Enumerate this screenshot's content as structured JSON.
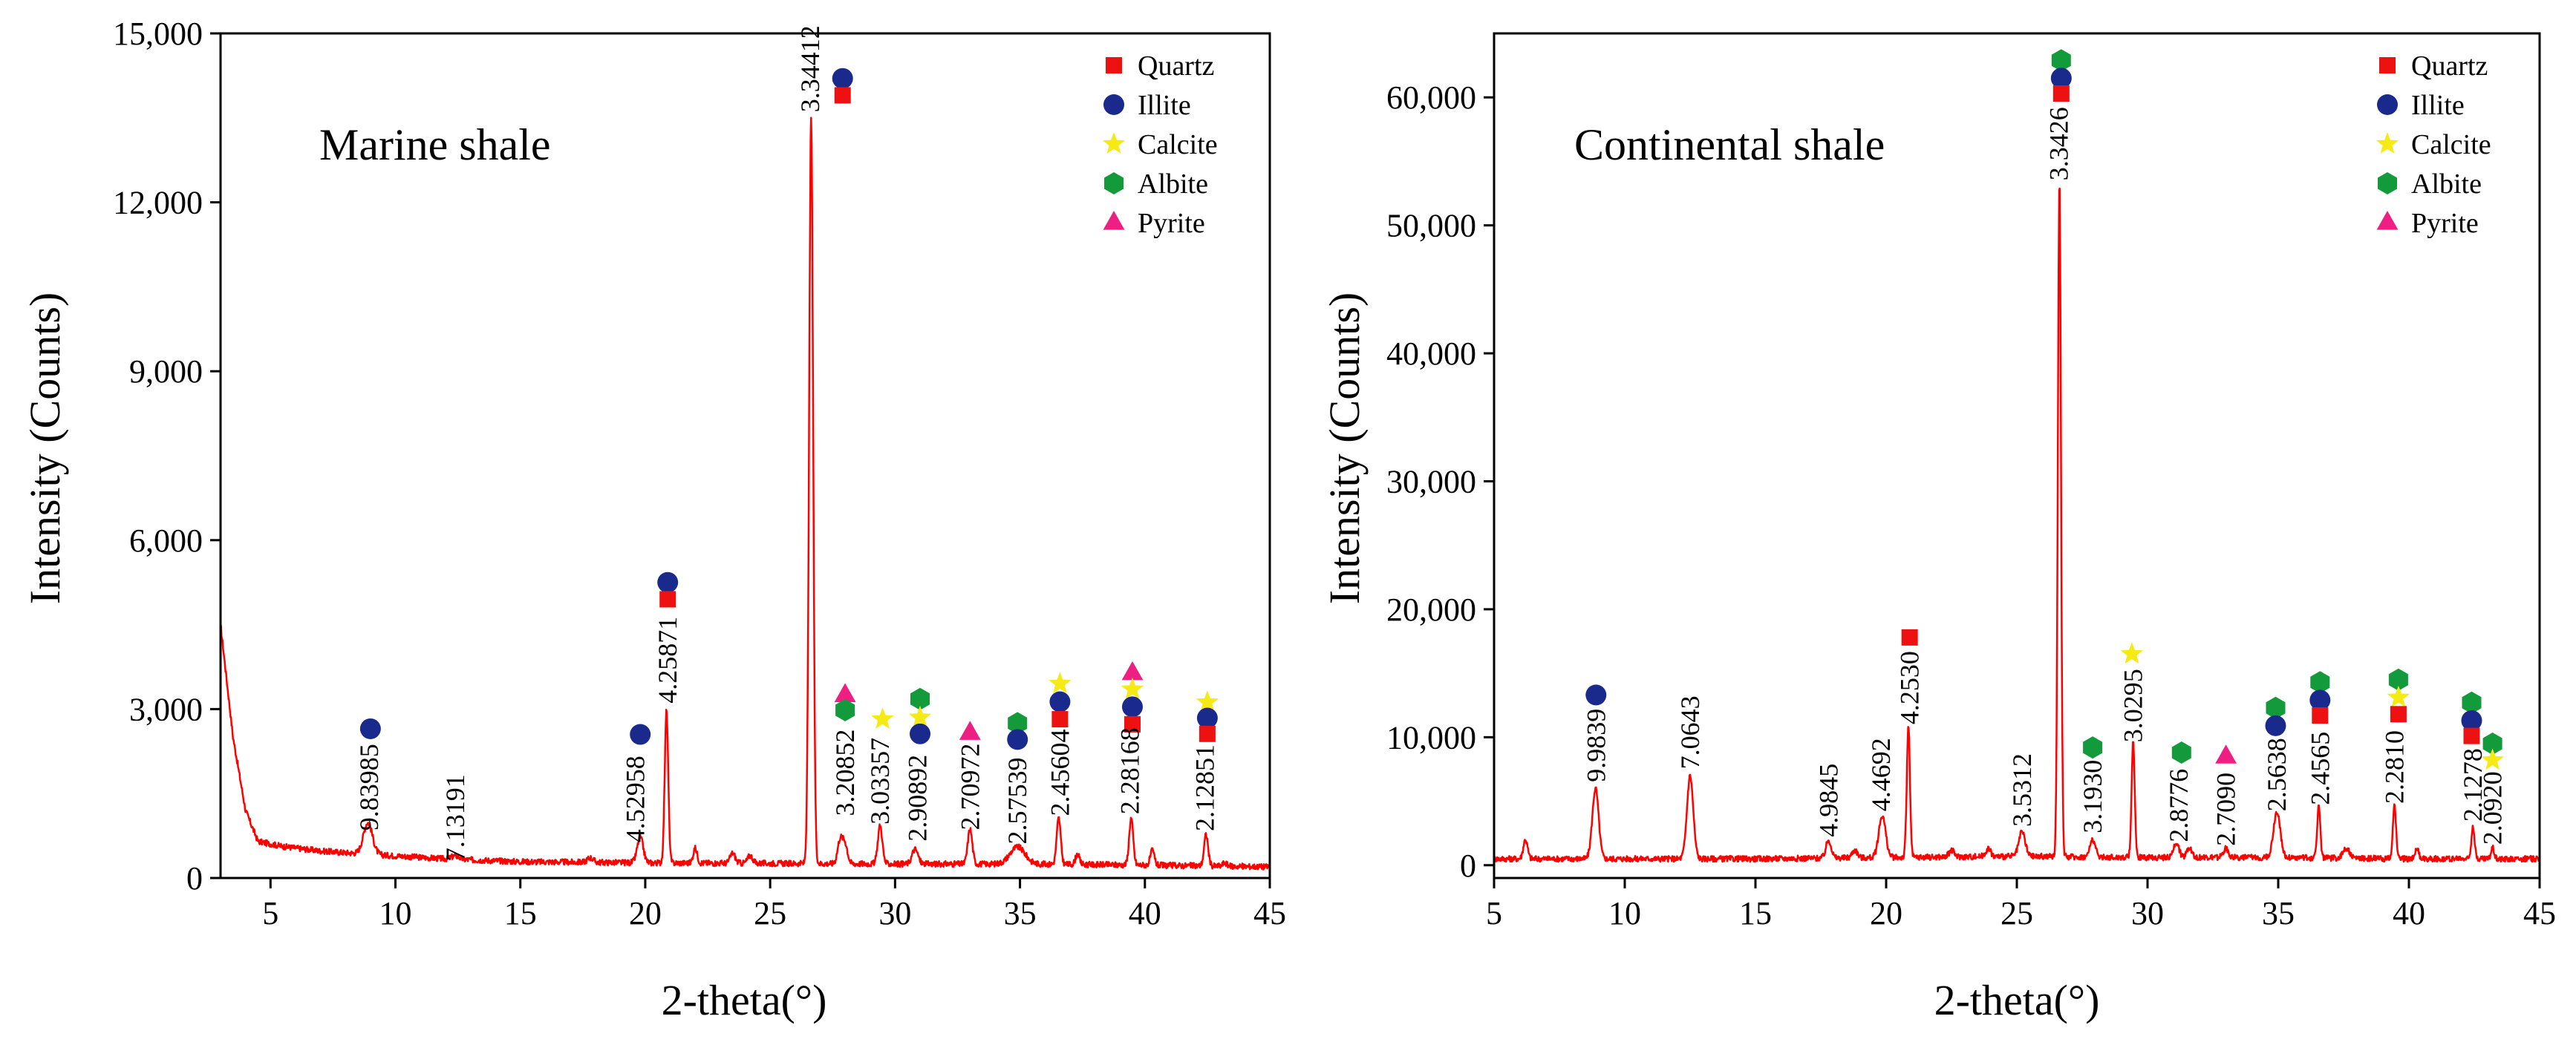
{
  "colors": {
    "trace": "#ff0000",
    "quartz": "#ee1111",
    "illite": "#1a2a8c",
    "calcite": "#f5ea14",
    "albite": "#139a3a",
    "pyrite": "#ee1e82"
  },
  "chart_data": [
    {
      "type": "line",
      "title": "Marine shale",
      "xlabel": "2-theta(°)",
      "ylabel": "Intensity (Counts)",
      "xlim": [
        3,
        45
      ],
      "ylim": [
        0,
        15000
      ],
      "xticks": [
        5,
        10,
        15,
        20,
        25,
        30,
        35,
        40,
        45
      ],
      "yticks": [
        0,
        3000,
        6000,
        9000,
        12000,
        15000
      ],
      "ytick_labels": [
        "0",
        "3,000",
        "6,000",
        "9,000",
        "12,000",
        "15,000"
      ],
      "grid": false,
      "legend_position": "top-right",
      "legend": [
        {
          "name": "Quartz",
          "marker": "square",
          "color": "#ee1111"
        },
        {
          "name": "Illite",
          "marker": "circle",
          "color": "#1a2a8c"
        },
        {
          "name": "Calcite",
          "marker": "star",
          "color": "#f5ea14"
        },
        {
          "name": "Albite",
          "marker": "hexagon",
          "color": "#139a3a"
        },
        {
          "name": "Pyrite",
          "marker": "triangle",
          "color": "#ee1e82"
        }
      ],
      "baseline": [
        [
          3,
          4500
        ],
        [
          3.5,
          2500
        ],
        [
          4,
          1200
        ],
        [
          4.5,
          650
        ],
        [
          5.5,
          560
        ],
        [
          7,
          480
        ],
        [
          9,
          420
        ],
        [
          12,
          340
        ],
        [
          15,
          290
        ],
        [
          20,
          270
        ],
        [
          25,
          260
        ],
        [
          30,
          250
        ],
        [
          35,
          250
        ],
        [
          40,
          230
        ],
        [
          45,
          200
        ]
      ],
      "peaks": [
        {
          "x": 8.9,
          "y": 560,
          "w": 0.18
        },
        {
          "x": 12.4,
          "y": 60,
          "w": 0.15
        },
        {
          "x": 17.8,
          "y": 80,
          "w": 0.12
        },
        {
          "x": 19.8,
          "y": 450,
          "w": 0.12
        },
        {
          "x": 20.85,
          "y": 2700,
          "w": 0.07
        },
        {
          "x": 22.0,
          "y": 260,
          "w": 0.08
        },
        {
          "x": 23.5,
          "y": 180,
          "w": 0.1
        },
        {
          "x": 24.2,
          "y": 140,
          "w": 0.1
        },
        {
          "x": 26.64,
          "y": 13200,
          "w": 0.08
        },
        {
          "x": 27.8,
          "y": 420,
          "w": 0.1
        },
        {
          "x": 28.0,
          "y": 340,
          "w": 0.1
        },
        {
          "x": 29.4,
          "y": 680,
          "w": 0.09
        },
        {
          "x": 30.8,
          "y": 260,
          "w": 0.12
        },
        {
          "x": 33.0,
          "y": 620,
          "w": 0.09
        },
        {
          "x": 34.9,
          "y": 300,
          "w": 0.3
        },
        {
          "x": 36.55,
          "y": 820,
          "w": 0.08
        },
        {
          "x": 37.3,
          "y": 180,
          "w": 0.08
        },
        {
          "x": 39.45,
          "y": 830,
          "w": 0.08
        },
        {
          "x": 40.3,
          "y": 260,
          "w": 0.08
        },
        {
          "x": 42.45,
          "y": 560,
          "w": 0.08
        },
        {
          "x": 43.2,
          "y": 60,
          "w": 0.08
        }
      ],
      "peak_labels": [
        {
          "x": 8.95,
          "y": 840,
          "text": "9.83985"
        },
        {
          "x": 12.4,
          "y": 300,
          "text": "7.13191"
        },
        {
          "x": 19.6,
          "y": 630,
          "text": "4.52958"
        },
        {
          "x": 20.9,
          "y": 3100,
          "text": "4.25871"
        },
        {
          "x": 26.6,
          "y": 13600,
          "text": "3.34412"
        },
        {
          "x": 28.0,
          "y": 1100,
          "text": "3.20852"
        },
        {
          "x": 29.4,
          "y": 950,
          "text": "3.03357"
        },
        {
          "x": 30.9,
          "y": 650,
          "text": "2.90892"
        },
        {
          "x": 33.0,
          "y": 850,
          "text": "2.70972"
        },
        {
          "x": 34.9,
          "y": 600,
          "text": "2.57539"
        },
        {
          "x": 36.6,
          "y": 1100,
          "text": "2.45604"
        },
        {
          "x": 39.4,
          "y": 1130,
          "text": "2.28168"
        },
        {
          "x": 42.4,
          "y": 830,
          "text": "2.12851"
        }
      ],
      "markers": [
        {
          "x": 9.0,
          "y": 2650,
          "mineral": "illite"
        },
        {
          "x": 19.8,
          "y": 2550,
          "mineral": "illite"
        },
        {
          "x": 20.9,
          "y": 5250,
          "mineral": "illite"
        },
        {
          "x": 20.9,
          "y": 4950,
          "mineral": "quartz"
        },
        {
          "x": 27.9,
          "y": 14200,
          "mineral": "illite"
        },
        {
          "x": 27.9,
          "y": 13900,
          "mineral": "quartz"
        },
        {
          "x": 28.0,
          "y": 3250,
          "mineral": "pyrite"
        },
        {
          "x": 28.0,
          "y": 2980,
          "mineral": "albite"
        },
        {
          "x": 29.5,
          "y": 2820,
          "mineral": "calcite"
        },
        {
          "x": 31.0,
          "y": 3180,
          "mineral": "albite"
        },
        {
          "x": 31.0,
          "y": 2850,
          "mineral": "calcite"
        },
        {
          "x": 31.0,
          "y": 2560,
          "mineral": "illite"
        },
        {
          "x": 33.0,
          "y": 2580,
          "mineral": "pyrite"
        },
        {
          "x": 34.9,
          "y": 2750,
          "mineral": "albite"
        },
        {
          "x": 34.9,
          "y": 2460,
          "mineral": "illite"
        },
        {
          "x": 36.6,
          "y": 3450,
          "mineral": "calcite"
        },
        {
          "x": 36.6,
          "y": 3130,
          "mineral": "illite"
        },
        {
          "x": 36.6,
          "y": 2820,
          "mineral": "quartz"
        },
        {
          "x": 39.5,
          "y": 3640,
          "mineral": "pyrite"
        },
        {
          "x": 39.5,
          "y": 3350,
          "mineral": "calcite"
        },
        {
          "x": 39.5,
          "y": 3040,
          "mineral": "illite"
        },
        {
          "x": 39.5,
          "y": 2730,
          "mineral": "quartz"
        },
        {
          "x": 42.5,
          "y": 3120,
          "mineral": "calcite"
        },
        {
          "x": 42.5,
          "y": 2840,
          "mineral": "illite"
        },
        {
          "x": 42.5,
          "y": 2560,
          "mineral": "quartz"
        }
      ]
    },
    {
      "type": "line",
      "title": "Continental shale",
      "xlabel": "2-theta(°)",
      "ylabel": "Intensity (Counts)",
      "xlim": [
        5,
        45
      ],
      "ylim": [
        -1000,
        65000
      ],
      "xticks": [
        5,
        10,
        15,
        20,
        25,
        30,
        35,
        40,
        45
      ],
      "yticks": [
        0,
        10000,
        20000,
        30000,
        40000,
        50000,
        60000
      ],
      "ytick_labels": [
        "0",
        "10,000",
        "20,000",
        "30,000",
        "40,000",
        "50,000",
        "60,000"
      ],
      "grid": false,
      "legend_position": "top-right",
      "legend": [
        {
          "name": "Quartz",
          "marker": "square",
          "color": "#ee1111"
        },
        {
          "name": "Illite",
          "marker": "circle",
          "color": "#1a2a8c"
        },
        {
          "name": "Calcite",
          "marker": "star",
          "color": "#f5ea14"
        },
        {
          "name": "Albite",
          "marker": "hexagon",
          "color": "#139a3a"
        },
        {
          "name": "Pyrite",
          "marker": "triangle",
          "color": "#ee1e82"
        }
      ],
      "baseline": [
        [
          5,
          500
        ],
        [
          10,
          500
        ],
        [
          15,
          500
        ],
        [
          20,
          600
        ],
        [
          25,
          700
        ],
        [
          30,
          600
        ],
        [
          35,
          600
        ],
        [
          40,
          500
        ],
        [
          45,
          500
        ]
      ],
      "peaks": [
        {
          "x": 6.2,
          "y": 1500,
          "w": 0.08
        },
        {
          "x": 8.88,
          "y": 5500,
          "w": 0.12
        },
        {
          "x": 12.5,
          "y": 6500,
          "w": 0.12
        },
        {
          "x": 17.8,
          "y": 1400,
          "w": 0.1
        },
        {
          "x": 18.8,
          "y": 600,
          "w": 0.1
        },
        {
          "x": 19.85,
          "y": 3300,
          "w": 0.13
        },
        {
          "x": 20.85,
          "y": 10300,
          "w": 0.06
        },
        {
          "x": 22.5,
          "y": 500,
          "w": 0.1
        },
        {
          "x": 23.9,
          "y": 600,
          "w": 0.1
        },
        {
          "x": 25.2,
          "y": 1900,
          "w": 0.12
        },
        {
          "x": 26.63,
          "y": 52800,
          "w": 0.06
        },
        {
          "x": 27.9,
          "y": 1400,
          "w": 0.1
        },
        {
          "x": 29.45,
          "y": 9000,
          "w": 0.06
        },
        {
          "x": 31.1,
          "y": 1200,
          "w": 0.1
        },
        {
          "x": 31.6,
          "y": 800,
          "w": 0.1
        },
        {
          "x": 33.0,
          "y": 700,
          "w": 0.1
        },
        {
          "x": 34.95,
          "y": 3600,
          "w": 0.13
        },
        {
          "x": 36.55,
          "y": 4100,
          "w": 0.06
        },
        {
          "x": 37.6,
          "y": 800,
          "w": 0.12
        },
        {
          "x": 39.45,
          "y": 4200,
          "w": 0.06
        },
        {
          "x": 40.3,
          "y": 800,
          "w": 0.07
        },
        {
          "x": 42.45,
          "y": 2600,
          "w": 0.06
        },
        {
          "x": 43.2,
          "y": 900,
          "w": 0.06
        }
      ],
      "peak_labels": [
        {
          "x": 8.9,
          "y": 6500,
          "text": "9.9839"
        },
        {
          "x": 12.5,
          "y": 7500,
          "text": "7.0643"
        },
        {
          "x": 17.8,
          "y": 2200,
          "text": "4.9845"
        },
        {
          "x": 19.8,
          "y": 4200,
          "text": "4.4692"
        },
        {
          "x": 20.9,
          "y": 11000,
          "text": "4.2530"
        },
        {
          "x": 25.2,
          "y": 3000,
          "text": "3.5312"
        },
        {
          "x": 26.6,
          "y": 53500,
          "text": "3.3426"
        },
        {
          "x": 27.9,
          "y": 2500,
          "text": "3.1930"
        },
        {
          "x": 29.45,
          "y": 9600,
          "text": "3.0295"
        },
        {
          "x": 31.2,
          "y": 1800,
          "text": "2.8776"
        },
        {
          "x": 33.0,
          "y": 1500,
          "text": "2.7090"
        },
        {
          "x": 34.95,
          "y": 4200,
          "text": "2.5638"
        },
        {
          "x": 36.6,
          "y": 4700,
          "text": "2.4565"
        },
        {
          "x": 39.45,
          "y": 4800,
          "text": "2.2810"
        },
        {
          "x": 42.45,
          "y": 3400,
          "text": "2.1278"
        },
        {
          "x": 43.2,
          "y": 1600,
          "text": "2.0920"
        }
      ],
      "markers": [
        {
          "x": 8.9,
          "y": 13300,
          "mineral": "illite"
        },
        {
          "x": 20.9,
          "y": 17800,
          "mineral": "quartz"
        },
        {
          "x": 26.7,
          "y": 62900,
          "mineral": "albite"
        },
        {
          "x": 26.7,
          "y": 61500,
          "mineral": "illite"
        },
        {
          "x": 26.7,
          "y": 60300,
          "mineral": "quartz"
        },
        {
          "x": 27.9,
          "y": 9200,
          "mineral": "albite"
        },
        {
          "x": 29.4,
          "y": 16500,
          "mineral": "calcite"
        },
        {
          "x": 31.3,
          "y": 8800,
          "mineral": "albite"
        },
        {
          "x": 33.0,
          "y": 8500,
          "mineral": "pyrite"
        },
        {
          "x": 34.9,
          "y": 12300,
          "mineral": "albite"
        },
        {
          "x": 34.9,
          "y": 10900,
          "mineral": "illite"
        },
        {
          "x": 36.6,
          "y": 14300,
          "mineral": "albite"
        },
        {
          "x": 36.6,
          "y": 12900,
          "mineral": "illite"
        },
        {
          "x": 36.6,
          "y": 11700,
          "mineral": "quartz"
        },
        {
          "x": 39.6,
          "y": 14500,
          "mineral": "albite"
        },
        {
          "x": 39.6,
          "y": 13100,
          "mineral": "calcite"
        },
        {
          "x": 39.6,
          "y": 11800,
          "mineral": "quartz"
        },
        {
          "x": 42.4,
          "y": 12700,
          "mineral": "albite"
        },
        {
          "x": 42.4,
          "y": 11300,
          "mineral": "illite"
        },
        {
          "x": 42.4,
          "y": 10100,
          "mineral": "quartz"
        },
        {
          "x": 43.2,
          "y": 9500,
          "mineral": "albite"
        },
        {
          "x": 43.2,
          "y": 8200,
          "mineral": "calcite"
        }
      ]
    }
  ]
}
